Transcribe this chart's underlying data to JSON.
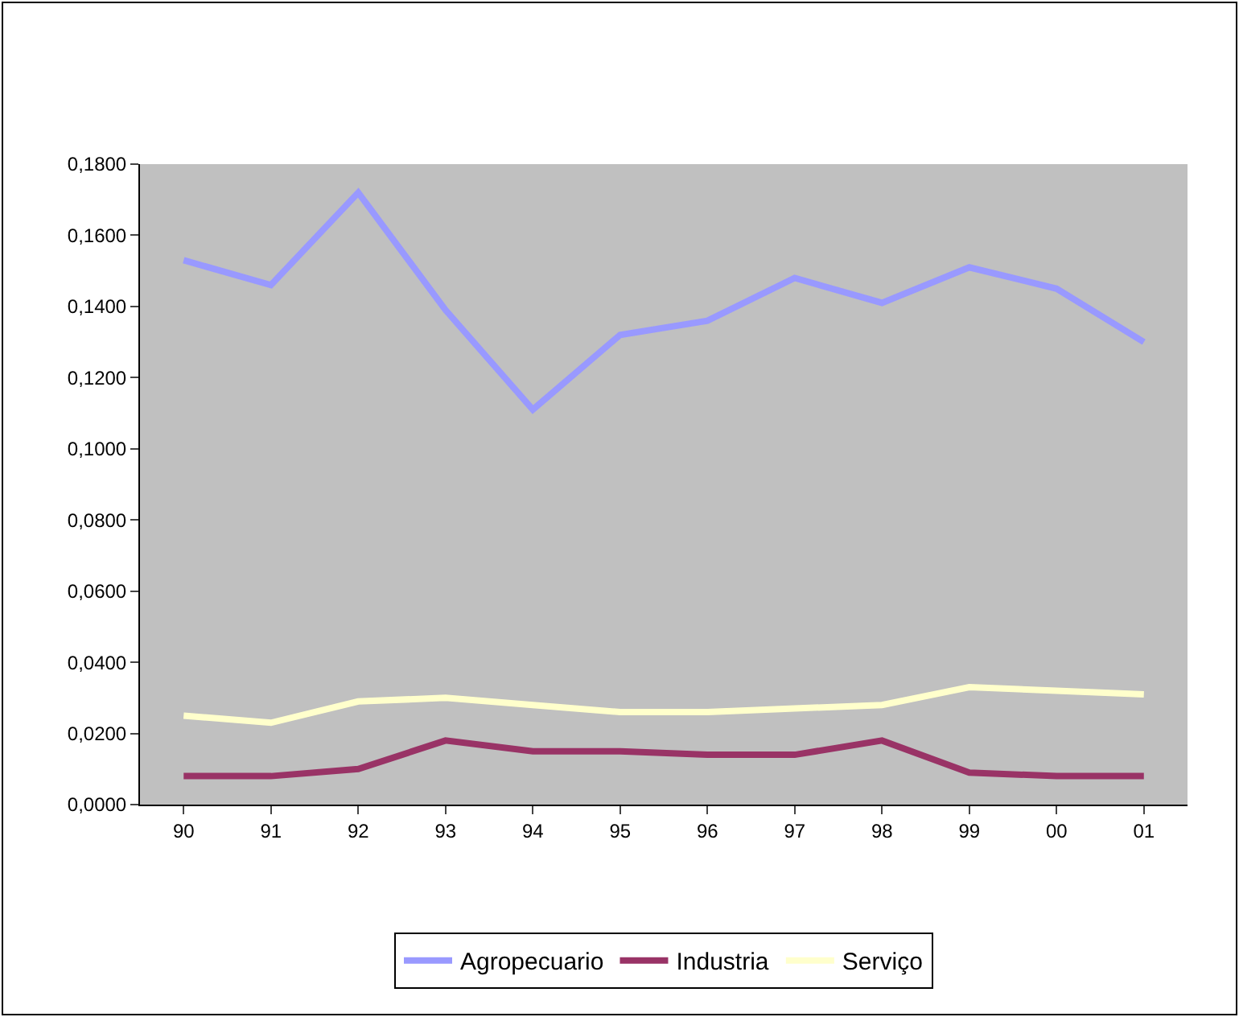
{
  "chart_data": {
    "type": "line",
    "categories": [
      "90",
      "91",
      "92",
      "93",
      "94",
      "95",
      "96",
      "97",
      "98",
      "99",
      "00",
      "01"
    ],
    "series": [
      {
        "name": "Agropecuario",
        "color": "#9999ff",
        "values": [
          0.153,
          0.146,
          0.172,
          0.139,
          0.111,
          0.132,
          0.136,
          0.148,
          0.141,
          0.151,
          0.145,
          0.13
        ]
      },
      {
        "name": "Industria",
        "color": "#993366",
        "values": [
          0.008,
          0.008,
          0.01,
          0.018,
          0.015,
          0.015,
          0.014,
          0.014,
          0.018,
          0.009,
          0.008,
          0.008
        ]
      },
      {
        "name": "Serviço",
        "color": "#ffffcc",
        "values": [
          0.025,
          0.023,
          0.029,
          0.03,
          0.028,
          0.026,
          0.026,
          0.027,
          0.028,
          0.033,
          0.032,
          0.031
        ]
      }
    ],
    "ylim": [
      0,
      0.18
    ],
    "yticks": [
      {
        "value": 0,
        "label": "0,0000"
      },
      {
        "value": 0.02,
        "label": "0,0200"
      },
      {
        "value": 0.04,
        "label": "0,0400"
      },
      {
        "value": 0.06,
        "label": "0,0600"
      },
      {
        "value": 0.08,
        "label": "0,0800"
      },
      {
        "value": 0.1,
        "label": "0,1000"
      },
      {
        "value": 0.12,
        "label": "0,1200"
      },
      {
        "value": 0.14,
        "label": "0,1400"
      },
      {
        "value": 0.16,
        "label": "0,1600"
      },
      {
        "value": 0.18,
        "label": "0,1800"
      }
    ],
    "grid": false,
    "legend": "bottom",
    "marker": "none",
    "line_style": "solid"
  }
}
